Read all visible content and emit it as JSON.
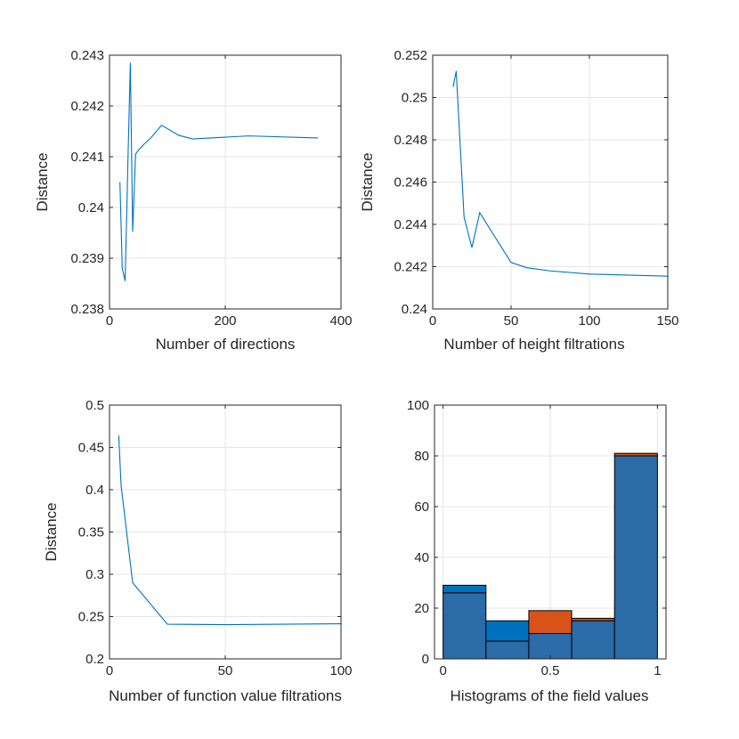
{
  "colors": {
    "line": "#0072BD",
    "hist_blue": "#0072BD",
    "hist_orange": "#D95319",
    "hist_overlap": "#2A6BA8"
  },
  "chart_data": [
    {
      "type": "line",
      "xlabel": "Number of directions",
      "ylabel": "Distance",
      "xlim": [
        0,
        400
      ],
      "ylim": [
        0.238,
        0.243
      ],
      "xticks": [
        0,
        200,
        400
      ],
      "xtick_labels": [
        "0",
        "200",
        "400"
      ],
      "yticks": [
        0.238,
        0.239,
        0.24,
        0.241,
        0.242,
        0.243
      ],
      "ytick_labels": [
        "0.238",
        "0.239",
        "0.24",
        "0.241",
        "0.242",
        "0.243"
      ],
      "grid": true,
      "series": [
        {
          "x": [
            18,
            22,
            27,
            32,
            36,
            40,
            45,
            50,
            60,
            72,
            90,
            120,
            144,
            240,
            360
          ],
          "y": [
            0.2405,
            0.2388,
            0.23855,
            0.241,
            0.24285,
            0.23952,
            0.24105,
            0.24113,
            0.24125,
            0.24138,
            0.24162,
            0.24142,
            0.24135,
            0.24141,
            0.24137
          ]
        }
      ]
    },
    {
      "type": "line",
      "xlabel": "Number of height filtrations",
      "ylabel": "Distance",
      "xlim": [
        0,
        150
      ],
      "ylim": [
        0.24,
        0.252
      ],
      "xticks": [
        0,
        50,
        100,
        150
      ],
      "xtick_labels": [
        "0",
        "50",
        "100",
        "150"
      ],
      "yticks": [
        0.24,
        0.242,
        0.244,
        0.246,
        0.248,
        0.25,
        0.252
      ],
      "ytick_labels": [
        "0.24",
        "0.242",
        "0.244",
        "0.246",
        "0.248",
        "0.25",
        "0.252"
      ],
      "grid": true,
      "series": [
        {
          "x": [
            13,
            15,
            20,
            25,
            30,
            50,
            60,
            75,
            100,
            150
          ],
          "y": [
            0.2505,
            0.25125,
            0.24435,
            0.2429,
            0.24455,
            0.2422,
            0.24195,
            0.2418,
            0.24165,
            0.24155
          ]
        }
      ]
    },
    {
      "type": "line",
      "xlabel": "Number of function value filtrations",
      "ylabel": "Distance",
      "xlim": [
        0,
        100
      ],
      "ylim": [
        0.2,
        0.5
      ],
      "xticks": [
        0,
        50,
        100
      ],
      "xtick_labels": [
        "0",
        "50",
        "100"
      ],
      "yticks": [
        0.2,
        0.25,
        0.3,
        0.35,
        0.4,
        0.45,
        0.5
      ],
      "ytick_labels": [
        "0.2",
        "0.25",
        "0.3",
        "0.35",
        "0.4",
        "0.45",
        "0.5"
      ],
      "grid": true,
      "series": [
        {
          "x": [
            4,
            5,
            10,
            25,
            50,
            100
          ],
          "y": [
            0.464,
            0.405,
            0.29,
            0.241,
            0.2405,
            0.2415
          ]
        }
      ]
    },
    {
      "type": "bar",
      "xlabel": "Histograms of the field values",
      "ylabel": "",
      "xlim": [
        -0.04,
        1.04
      ],
      "ylim": [
        0,
        100
      ],
      "xticks": [
        0,
        0.5,
        1
      ],
      "xtick_labels": [
        "0",
        "0.5",
        "1"
      ],
      "yticks": [
        0,
        20,
        40,
        60,
        80,
        100
      ],
      "ytick_labels": [
        "0",
        "20",
        "40",
        "60",
        "80",
        "100"
      ],
      "grid": true,
      "bin_edges": [
        0,
        0.2,
        0.4,
        0.6,
        0.8,
        1.0
      ],
      "series": [
        {
          "values": [
            29,
            15,
            10,
            15,
            80
          ]
        },
        {
          "values": [
            26,
            7,
            19,
            16,
            81
          ]
        }
      ]
    }
  ]
}
